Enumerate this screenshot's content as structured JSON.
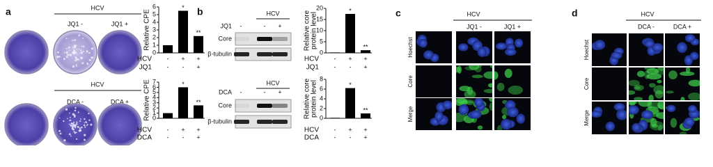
{
  "panel_a": {
    "label": "a",
    "top": {
      "header": "HCV",
      "columns": [
        "JQ1 -",
        "JQ1 +"
      ]
    },
    "bottom": {
      "header": "HCV",
      "columns": [
        "DCA -",
        "DCA +"
      ]
    }
  },
  "panel_b": {
    "label": "b",
    "top": {
      "header": "HCV",
      "treatment": "JQ1",
      "signs": [
        "-",
        "-",
        "+"
      ],
      "rows": [
        "Core",
        "β-tubulin"
      ]
    },
    "bottom": {
      "header": "HCV",
      "treatment": "DCA",
      "signs": [
        "-",
        "-",
        "+"
      ],
      "rows": [
        "Core",
        "β-tubulin"
      ]
    }
  },
  "panel_c": {
    "label": "c",
    "header": "HCV",
    "columns": [
      "JQ1 -",
      "JQ1 +"
    ],
    "rows": [
      "Hoechst",
      "Core",
      "Merge"
    ]
  },
  "panel_d": {
    "label": "d",
    "header": "HCV",
    "columns": [
      "DCA -",
      "DCA +"
    ],
    "rows": [
      "Hoechst",
      "Core",
      "Merge"
    ]
  },
  "chart_data": [
    {
      "type": "bar",
      "y_label": [
        "Relative CPE"
      ],
      "color": "#000000",
      "ylim": [
        0,
        6
      ],
      "yticks": [
        0,
        1,
        2,
        3,
        4,
        5,
        6
      ],
      "values": [
        1,
        5.5,
        2.2
      ],
      "annotations": [
        null,
        "*",
        "**"
      ],
      "conditions": [
        {
          "name": "HCV",
          "signs": [
            "-",
            "+",
            "+"
          ]
        },
        {
          "name": "JQ1",
          "signs": [
            "-",
            "-",
            "+"
          ]
        }
      ]
    },
    {
      "type": "bar",
      "y_label": [
        "Relative CPE"
      ],
      "color": "#000000",
      "ylim": [
        0,
        7
      ],
      "yticks": [
        0,
        1,
        2,
        3,
        4,
        5,
        6,
        7
      ],
      "values": [
        1,
        6,
        2.5
      ],
      "annotations": [
        null,
        "*",
        "**"
      ],
      "conditions": [
        {
          "name": "HCV",
          "signs": [
            "-",
            "+",
            "+"
          ]
        },
        {
          "name": "DCA",
          "signs": [
            "-",
            "-",
            "+"
          ]
        }
      ]
    },
    {
      "type": "bar",
      "y_label": [
        "Relative core",
        "protein level"
      ],
      "color": "#000000",
      "ylim": [
        0,
        20
      ],
      "yticks": [
        0,
        5,
        10,
        15,
        20
      ],
      "values": [
        0.2,
        17.5,
        1.2
      ],
      "annotations": [
        null,
        "*",
        "**"
      ],
      "conditions": [
        {
          "name": "HCV",
          "signs": [
            "-",
            "+",
            "+"
          ]
        },
        {
          "name": "JQ1",
          "signs": [
            "-",
            "-",
            "+"
          ]
        }
      ]
    },
    {
      "type": "bar",
      "y_label": [
        "Relative core",
        "protein level"
      ],
      "color": "#000000",
      "ylim": [
        0,
        8
      ],
      "yticks": [
        0,
        2,
        4,
        6,
        8
      ],
      "values": [
        0.1,
        6.2,
        1
      ],
      "annotations": [
        null,
        "*",
        "**"
      ],
      "conditions": [
        {
          "name": "HCV",
          "signs": [
            "-",
            "+",
            "+"
          ]
        },
        {
          "name": "DCA",
          "signs": [
            "-",
            "-",
            "+"
          ]
        }
      ]
    }
  ]
}
